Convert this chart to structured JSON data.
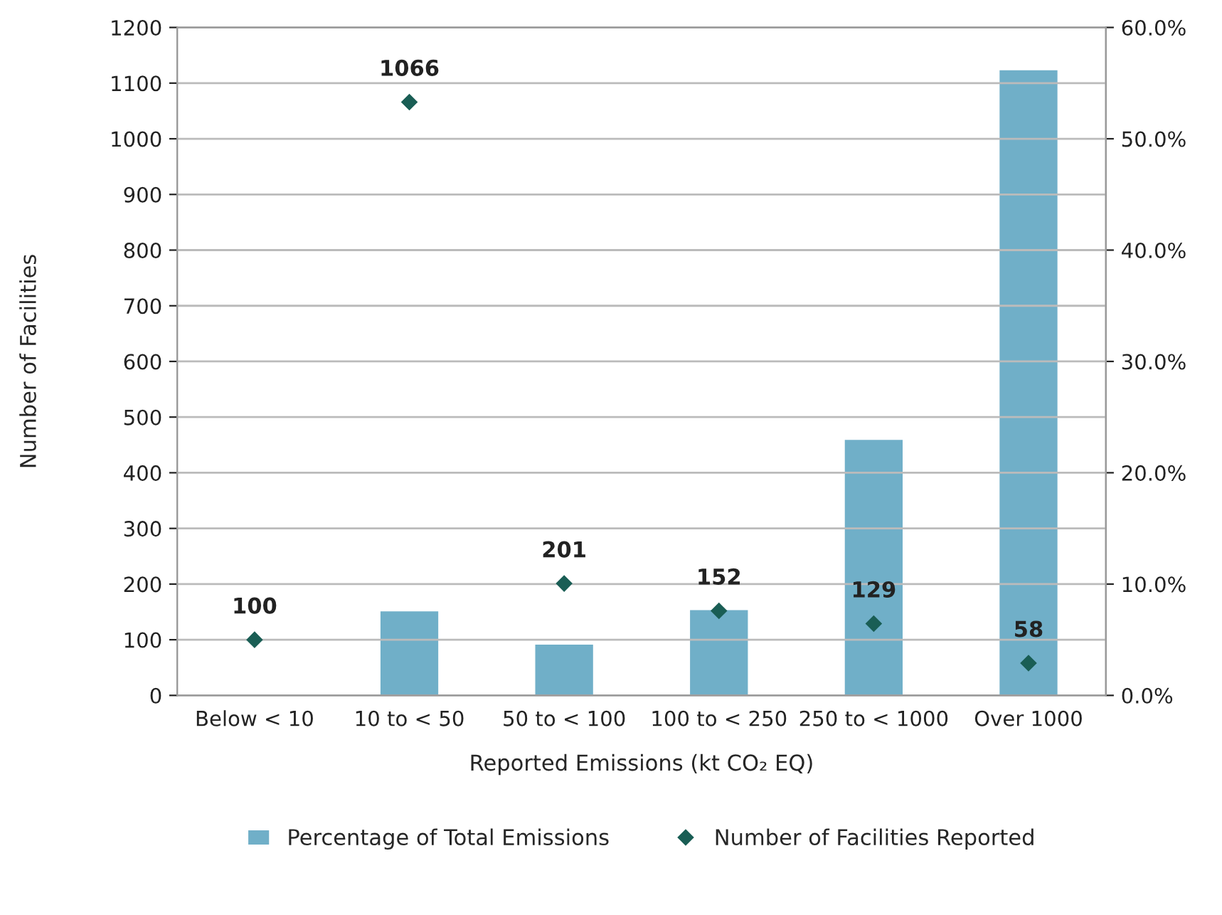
{
  "chart_data": {
    "type": "bar",
    "categories": [
      "Below < 10",
      "10 to < 50",
      "50 to < 100",
      "100 to < 250",
      "250 to < 1000",
      "Over 1000"
    ],
    "xlabel": "Reported Emissions (kt CO₂ EQ)",
    "ylabel": "Number of Facilities",
    "series": [
      {
        "name": "Percentage of Total Emissions",
        "axis": "y2",
        "color": "#70afc8",
        "values": [
          0.1,
          7.6,
          4.6,
          7.7,
          23.0,
          56.2
        ]
      },
      {
        "name": "Number of Facilities Reported",
        "type": "scatter",
        "color": "#1a5e55",
        "marker": "diamond",
        "values": [
          100,
          1066,
          201,
          152,
          129,
          58
        ],
        "data_labels": true
      }
    ],
    "ylim": [
      0,
      1200
    ],
    "yticks": [
      0,
      100,
      200,
      300,
      400,
      500,
      600,
      700,
      800,
      900,
      1000,
      1100,
      1200
    ],
    "y2lim": [
      0,
      60
    ],
    "y2ticks": [
      {
        "value": 0,
        "label": "0.0%"
      },
      {
        "value": 10,
        "label": "10.0%"
      },
      {
        "value": 20,
        "label": "20.0%"
      },
      {
        "value": 30,
        "label": "30.0%"
      },
      {
        "value": 40,
        "label": "40.0%"
      },
      {
        "value": 50,
        "label": "50.0%"
      },
      {
        "value": 60,
        "label": "60.0%"
      }
    ],
    "grid": "y",
    "legend": "bottom"
  }
}
